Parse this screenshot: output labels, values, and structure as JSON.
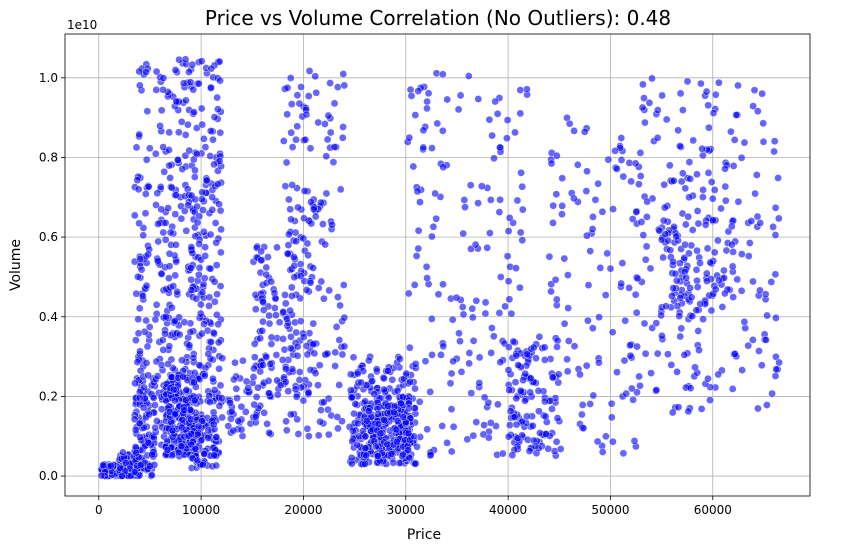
{
  "chart_data": {
    "type": "scatter",
    "title": "Price vs Volume Correlation (No Outliers): 0.48",
    "xlabel": "Price",
    "ylabel": "Volume",
    "y_offset_label": "1e10",
    "xlim": [
      -3300,
      69500
    ],
    "ylim": [
      -0.05,
      1.11
    ],
    "x_ticks": [
      0,
      10000,
      20000,
      30000,
      40000,
      50000,
      60000
    ],
    "x_tick_labels": [
      "0",
      "10000",
      "20000",
      "30000",
      "40000",
      "50000",
      "60000"
    ],
    "y_ticks": [
      0.0,
      0.2,
      0.4,
      0.6,
      0.8,
      1.0
    ],
    "y_tick_labels": [
      "0.0",
      "0.2",
      "0.4",
      "0.6",
      "0.8",
      "1.0"
    ],
    "grid": true,
    "legend": "none",
    "marker_color": "#0000ff",
    "marker_edge_color": "#ffffff",
    "marker_alpha": 0.6,
    "point_clusters": [
      {
        "x_range": [
          200,
          2500
        ],
        "y_range": [
          0.0,
          0.03
        ],
        "count": 120
      },
      {
        "x_range": [
          2000,
          4000
        ],
        "y_range": [
          0.0,
          0.06
        ],
        "count": 80
      },
      {
        "x_range": [
          3500,
          5500
        ],
        "y_range": [
          0.0,
          0.25
        ],
        "count": 110
      },
      {
        "x_range": [
          3500,
          5000
        ],
        "y_range": [
          0.25,
          1.05
        ],
        "count": 70
      },
      {
        "x_range": [
          5500,
          12000
        ],
        "y_range": [
          0.05,
          1.05
        ],
        "count": 450
      },
      {
        "x_range": [
          6500,
          9500
        ],
        "y_range": [
          0.05,
          0.25
        ],
        "count": 200
      },
      {
        "x_range": [
          9000,
          11500
        ],
        "y_range": [
          0.02,
          0.15
        ],
        "count": 70
      },
      {
        "x_range": [
          12000,
          17000
        ],
        "y_range": [
          0.1,
          0.3
        ],
        "count": 60
      },
      {
        "x_range": [
          15000,
          21000
        ],
        "y_range": [
          0.2,
          0.6
        ],
        "count": 120
      },
      {
        "x_range": [
          18000,
          24000
        ],
        "y_range": [
          0.1,
          1.02
        ],
        "count": 170
      },
      {
        "x_range": [
          24500,
          31000
        ],
        "y_range": [
          0.03,
          0.3
        ],
        "count": 260
      },
      {
        "x_range": [
          26000,
          30500
        ],
        "y_range": [
          0.05,
          0.2
        ],
        "count": 140
      },
      {
        "x_range": [
          30000,
          42000
        ],
        "y_range": [
          0.05,
          1.02
        ],
        "count": 180
      },
      {
        "x_range": [
          40000,
          45000
        ],
        "y_range": [
          0.05,
          0.35
        ],
        "count": 120
      },
      {
        "x_range": [
          44000,
          53000
        ],
        "y_range": [
          0.05,
          0.9
        ],
        "count": 110
      },
      {
        "x_range": [
          52000,
          66500
        ],
        "y_range": [
          0.15,
          1.0
        ],
        "count": 230
      },
      {
        "x_range": [
          55000,
          62000
        ],
        "y_range": [
          0.4,
          0.65
        ],
        "count": 90
      }
    ]
  }
}
